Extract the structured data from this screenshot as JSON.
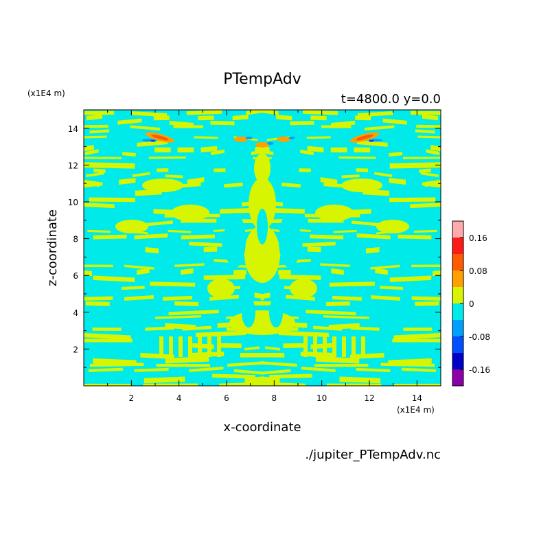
{
  "chart_data": {
    "type": "heatmap",
    "title": "PTempAdv",
    "subtitle": "t=4800.0 y=0.0",
    "xlabel": "x-coordinate",
    "ylabel": "z-coordinate",
    "x_unit_label": "(x1E4 m)",
    "y_unit_label": "(x1E4 m)",
    "source_label": "./jupiter_PTempAdv.nc",
    "xlim": [
      0,
      15
    ],
    "ylim": [
      0,
      15
    ],
    "xticks": [
      "2",
      "4",
      "6",
      "8",
      "10",
      "12",
      "14"
    ],
    "yticks": [
      "2",
      "4",
      "6",
      "8",
      "10",
      "12",
      "14"
    ],
    "colorbar": {
      "tick_labels": [
        "0.16",
        "0.08",
        "0",
        "-0.08",
        "-0.16"
      ],
      "levels": [
        0.2,
        0.16,
        0.12,
        0.08,
        0.04,
        0,
        -0.04,
        -0.08,
        -0.12,
        -0.16,
        -0.2
      ],
      "colors": [
        "#ffaaaa",
        "#ff1a1a",
        "#ff5a00",
        "#ffa000",
        "#d7f500",
        "#00eaea",
        "#00a0ff",
        "#0050ff",
        "#0000c8",
        "#8c00aa"
      ]
    },
    "field_description": "Mirror-symmetric banded pattern of small positive (yellow-green, 0 to 0.04) and small negative (cyan, -0.04 to 0) values; local orange/red maxima near z=13.5 at x≈3, x≈12 and x≈7.5, blue minima beside them."
  }
}
